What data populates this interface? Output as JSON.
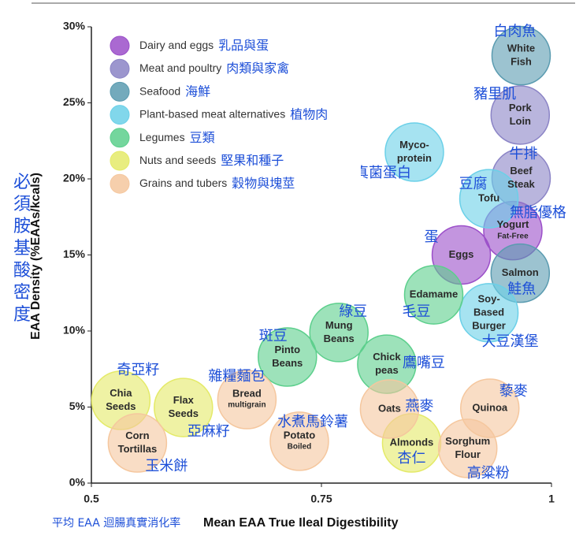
{
  "chart_data": {
    "type": "bubble",
    "x_label": "Mean EAA True Ileal Digestibility",
    "x_label_zh": "平均 EAA 迴腸真實消化率",
    "y_label": "EAA Density (%EAAs/kcals)",
    "y_label_zh": "必須胺基酸密度",
    "xlim": [
      0.5,
      1
    ],
    "xticks": [
      0.5,
      0.75,
      1
    ],
    "ylim": [
      0,
      30
    ],
    "yticks": [
      {
        "value": 0,
        "label": "0%"
      },
      {
        "value": 5,
        "label": "5%"
      },
      {
        "value": 10,
        "label": "10%"
      },
      {
        "value": 15,
        "label": "15%"
      },
      {
        "value": 20,
        "label": "20%"
      },
      {
        "value": 25,
        "label": "25%"
      },
      {
        "value": 30,
        "label": "30%"
      }
    ],
    "legend": "top-left",
    "series": [
      {
        "name": "Dairy and eggs",
        "name_zh": "乳品與蛋",
        "color": "#9b4fc9",
        "x": [
          0.902,
          0.958
        ],
        "values": [
          15.0,
          16.6
        ],
        "labels": [
          {
            "lines": [
              "Eggs"
            ]
          },
          {
            "lines": [
              "Yogurt"
            ],
            "note": "Fat-Free"
          }
        ],
        "zh_labels": [
          "蛋",
          "無脂優格"
        ]
      },
      {
        "name": "Meat and poultry",
        "name_zh": "肉類與家禽",
        "color": "#8b84c6",
        "x": [
          0.966,
          0.967
        ],
        "values": [
          24.2,
          20.05
        ],
        "labels": [
          {
            "lines": [
              "Pork",
              "Loin"
            ]
          },
          {
            "lines": [
              "Beef",
              "Steak"
            ]
          }
        ],
        "zh_labels": [
          "豬里肌",
          "牛排"
        ]
      },
      {
        "name": "Seafood",
        "name_zh": "海鮮",
        "color": "#5a9bb0",
        "x": [
          0.967,
          0.966
        ],
        "values": [
          28.1,
          13.8
        ],
        "labels": [
          {
            "lines": [
              "White",
              "Fish"
            ]
          },
          {
            "lines": [
              "Salmon"
            ]
          }
        ],
        "zh_labels": [
          "白肉魚",
          "鮭魚"
        ]
      },
      {
        "name": "Plant-based meat alternatives",
        "name_zh": "植物肉",
        "color": "#6bd0e8",
        "x": [
          0.851,
          0.932,
          0.932
        ],
        "values": [
          21.76,
          18.7,
          11.2
        ],
        "labels": [
          {
            "lines": [
              "Myco-",
              "protein"
            ]
          },
          {
            "lines": [
              "Tofu"
            ]
          },
          {
            "lines": [
              "Soy-",
              "Based",
              "Burger"
            ]
          }
        ],
        "zh_labels": [
          "真菌蛋白",
          "豆腐",
          "大豆漢堡"
        ]
      },
      {
        "name": "Legumes",
        "name_zh": "豆類",
        "color": "#5ccf8c",
        "x": [
          0.713,
          0.769,
          0.821,
          0.872
        ],
        "values": [
          8.29,
          9.9,
          7.82,
          12.38
        ],
        "labels": [
          {
            "lines": [
              "Pinto",
              "Beans"
            ]
          },
          {
            "lines": [
              "Mung",
              "Beans"
            ]
          },
          {
            "lines": [
              "Chick",
              "peas"
            ]
          },
          {
            "lines": [
              "Edamame"
            ]
          }
        ],
        "zh_labels": [
          "斑豆",
          "綠豆",
          "鷹嘴豆",
          "毛豆"
        ]
      },
      {
        "name": "Nuts and seeds",
        "name_zh": "堅果和種子",
        "color": "#e4ea68",
        "x": [
          0.532,
          0.6,
          0.848
        ],
        "values": [
          5.44,
          4.97,
          2.64
        ],
        "labels": [
          {
            "lines": [
              "Chia",
              "Seeds"
            ]
          },
          {
            "lines": [
              "Flax",
              "Seeds"
            ]
          },
          {
            "lines": [
              "Almonds"
            ]
          }
        ],
        "zh_labels": [
          "奇亞籽",
          "亞麻籽",
          "杏仁"
        ]
      },
      {
        "name": "Grains and tubers",
        "name_zh": "穀物與塊莖",
        "color": "#f5c79e",
        "x": [
          0.55,
          0.669,
          0.726,
          0.824,
          0.909,
          0.933
        ],
        "values": [
          2.64,
          5.49,
          2.75,
          4.87,
          2.28,
          4.92
        ],
        "labels": [
          {
            "lines": [
              "Corn",
              "Tortillas"
            ]
          },
          {
            "lines": [
              "Bread"
            ],
            "note": "multigrain"
          },
          {
            "lines": [
              "Potato"
            ],
            "note": "Boiled"
          },
          {
            "lines": [
              "Oats"
            ]
          },
          {
            "lines": [
              "Sorghum",
              "Flour"
            ]
          },
          {
            "lines": [
              "Quinoa"
            ]
          }
        ],
        "zh_labels": [
          "玉米餅",
          "雜糧麵包",
          "水煮馬鈴薯",
          "燕麥",
          "高粱粉",
          "藜麥"
        ]
      }
    ]
  }
}
